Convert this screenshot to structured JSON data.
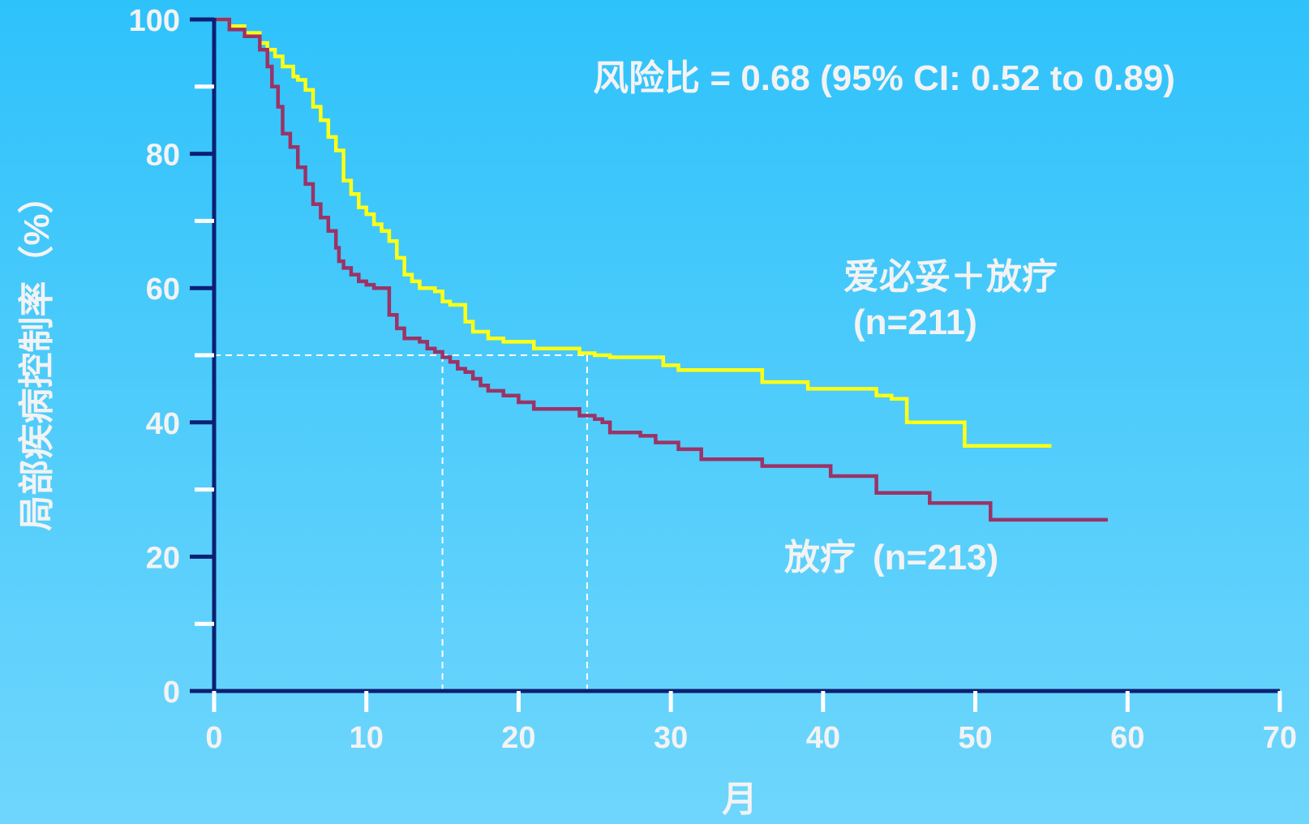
{
  "chart_data": {
    "type": "line",
    "title": "",
    "xlabel": "月",
    "ylabel": "局部疾病控制率（%）",
    "xlim": [
      0,
      70
    ],
    "ylim": [
      0,
      100
    ],
    "x_ticks": [
      0,
      10,
      20,
      30,
      40,
      50,
      60,
      70
    ],
    "y_ticks": [
      0,
      20,
      40,
      60,
      80,
      100
    ],
    "y_minor_ticks": [
      10,
      30,
      50,
      70,
      90
    ],
    "grid": false,
    "annotation": "风险比 = 0.68 (95% CI: 0.52 to 0.89)",
    "median_reference": {
      "y": 50,
      "x_values": [
        15,
        24.5
      ]
    },
    "series": [
      {
        "name": "爱必妥＋放疗",
        "n_label": "(n=211)",
        "color": "#ffff14",
        "x": [
          0,
          1,
          2,
          3,
          3.5,
          4,
          4.5,
          5.2,
          5.5,
          6,
          6.5,
          7,
          7.5,
          8,
          8.5,
          9,
          9.5,
          10,
          10.5,
          11,
          11.5,
          12,
          12.5,
          13,
          13.5,
          14,
          14.5,
          15,
          15.5,
          16,
          16.5,
          17,
          18,
          19,
          20,
          21,
          22,
          23,
          24,
          25,
          26,
          28,
          29.5,
          30.5,
          32,
          34,
          36,
          37.5,
          39,
          41,
          43.5,
          44.5,
          45.5,
          47,
          49.3,
          51,
          53,
          55
        ],
        "y": [
          100,
          99,
          98,
          96.5,
          95.5,
          94.5,
          93,
          91.5,
          91,
          89.5,
          87,
          85,
          82.5,
          80.5,
          76,
          74,
          72,
          71,
          69.5,
          68.5,
          67,
          64.5,
          62,
          61,
          60,
          60,
          59.5,
          58,
          57.5,
          57.5,
          55,
          53.5,
          52.5,
          52,
          52,
          51,
          51,
          51,
          50.3,
          50,
          49.7,
          49.7,
          48.5,
          47.8,
          47.8,
          47.8,
          46,
          46,
          45,
          45,
          44,
          43.5,
          40,
          40,
          36.5,
          36.5,
          36.5,
          36.5
        ]
      },
      {
        "name": "放疗",
        "n_label": "(n=213)",
        "color": "#9b3366",
        "x": [
          0,
          1,
          2,
          3,
          3.5,
          3.8,
          4.2,
          4.5,
          5,
          5.5,
          6,
          6.5,
          7,
          7.5,
          8,
          8.2,
          8.5,
          9,
          9.5,
          10,
          10.5,
          11,
          11.5,
          12,
          12.5,
          13,
          13.5,
          14,
          14.5,
          15,
          15.5,
          16,
          16.5,
          17,
          17.5,
          18,
          19,
          20,
          21,
          22,
          23,
          24,
          25,
          25.5,
          26,
          28,
          29,
          30.5,
          32,
          34,
          36,
          38,
          40.5,
          42,
          43.5,
          45,
          47,
          49,
          51,
          54,
          57,
          58.7
        ],
        "y": [
          100,
          98.5,
          97.5,
          95.5,
          93,
          90,
          87,
          83,
          81,
          78,
          75.5,
          72.5,
          70.5,
          68.5,
          66,
          64,
          63,
          62,
          61,
          60.5,
          60,
          60,
          56,
          54,
          52.5,
          52.5,
          52,
          51,
          50.5,
          49.7,
          49,
          48,
          47.5,
          46.5,
          45.5,
          44.7,
          44,
          43,
          42,
          42,
          42,
          41,
          40.5,
          40,
          38.5,
          38,
          37,
          36,
          34.5,
          34.5,
          33.5,
          33.5,
          32,
          32,
          29.5,
          29.5,
          28,
          28,
          25.5,
          25.5,
          25.5,
          25.5
        ]
      }
    ]
  }
}
